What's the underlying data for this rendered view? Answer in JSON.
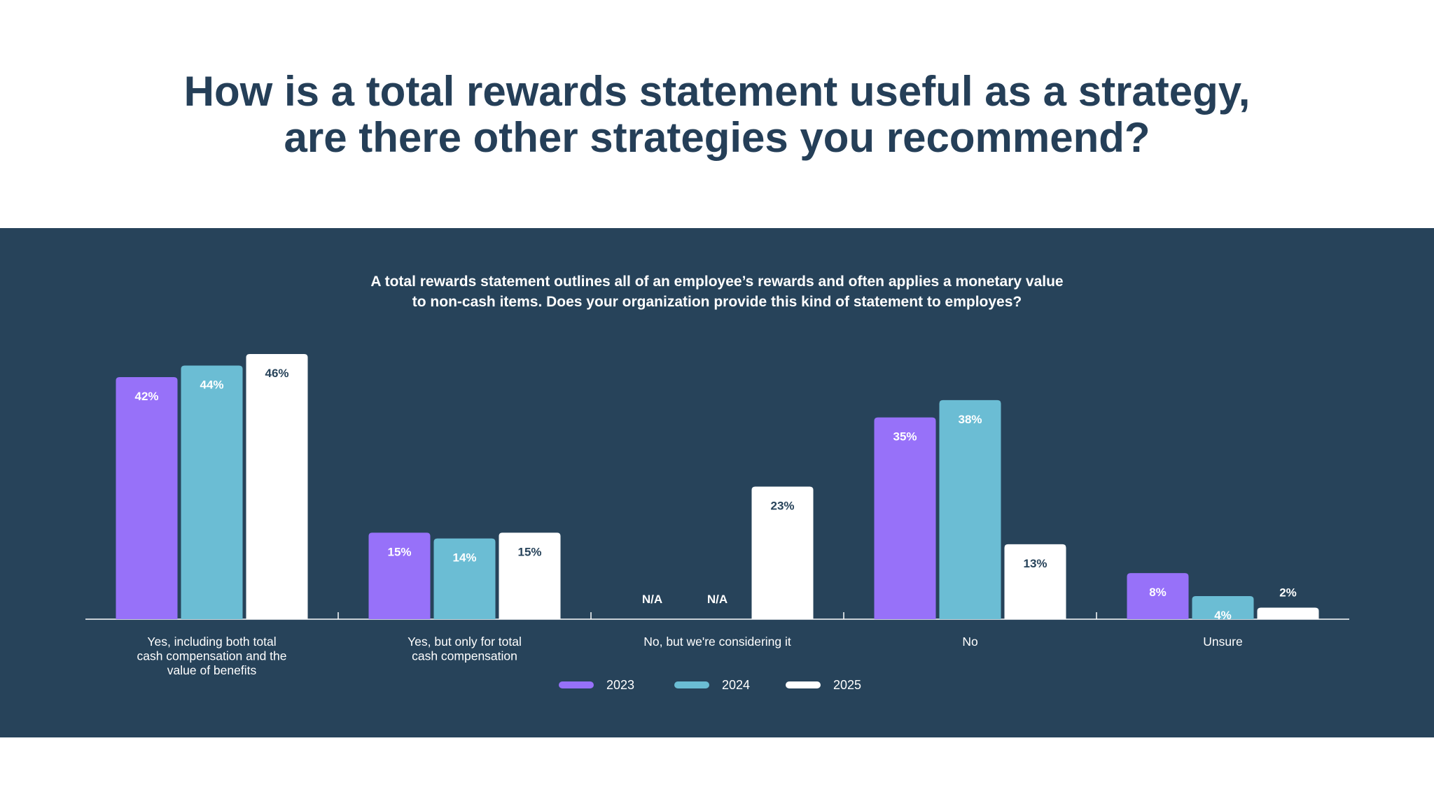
{
  "title": {
    "line1": "How is a total rewards statement useful as a strategy,",
    "line2": "are there other strategies you recommend?"
  },
  "subtitle": {
    "line1": "A total rewards statement outlines all of an employee’s rewards and often applies a monetary value",
    "line2": "to non-cash items. Does your organization provide this kind of statement to employes?"
  },
  "colors": {
    "title": "#253f58",
    "panel": "#27435a",
    "series_2023": "#9771f9",
    "series_2024": "#6bbdd4",
    "series_2025": "#ffffff",
    "axis": "#ffffff"
  },
  "chart_data": {
    "type": "bar",
    "categories": [
      [
        "Yes, including both total",
        "cash compensation and the",
        "value of benefits"
      ],
      [
        "Yes, but only for total",
        "cash compensation"
      ],
      [
        "No, but we're considering it"
      ],
      [
        "No"
      ],
      [
        "Unsure"
      ]
    ],
    "series": [
      {
        "name": "2023",
        "values": [
          42,
          15,
          null,
          35,
          8
        ],
        "labels": [
          "42%",
          "15%",
          "N/A",
          "35%",
          "8%"
        ]
      },
      {
        "name": "2024",
        "values": [
          44,
          14,
          null,
          38,
          4
        ],
        "labels": [
          "44%",
          "14%",
          "N/A",
          "38%",
          "4%"
        ]
      },
      {
        "name": "2025",
        "values": [
          46,
          15,
          23,
          13,
          2
        ],
        "labels": [
          "46%",
          "15%",
          "23%",
          "13%",
          "2%"
        ]
      }
    ],
    "ylim": [
      0,
      46
    ],
    "grid": false,
    "legend": "bottom-center"
  }
}
